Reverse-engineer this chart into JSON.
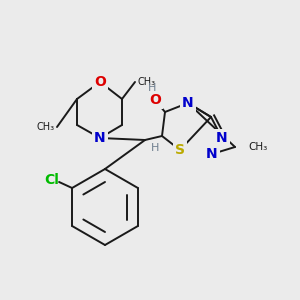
{
  "bg_color": "#ebebeb",
  "bond_color": "#1a1a1a",
  "bond_width": 1.4,
  "fig_size": [
    3.0,
    3.0
  ],
  "dpi": 100,
  "xlim": [
    0,
    300
  ],
  "ylim": [
    0,
    300
  ]
}
